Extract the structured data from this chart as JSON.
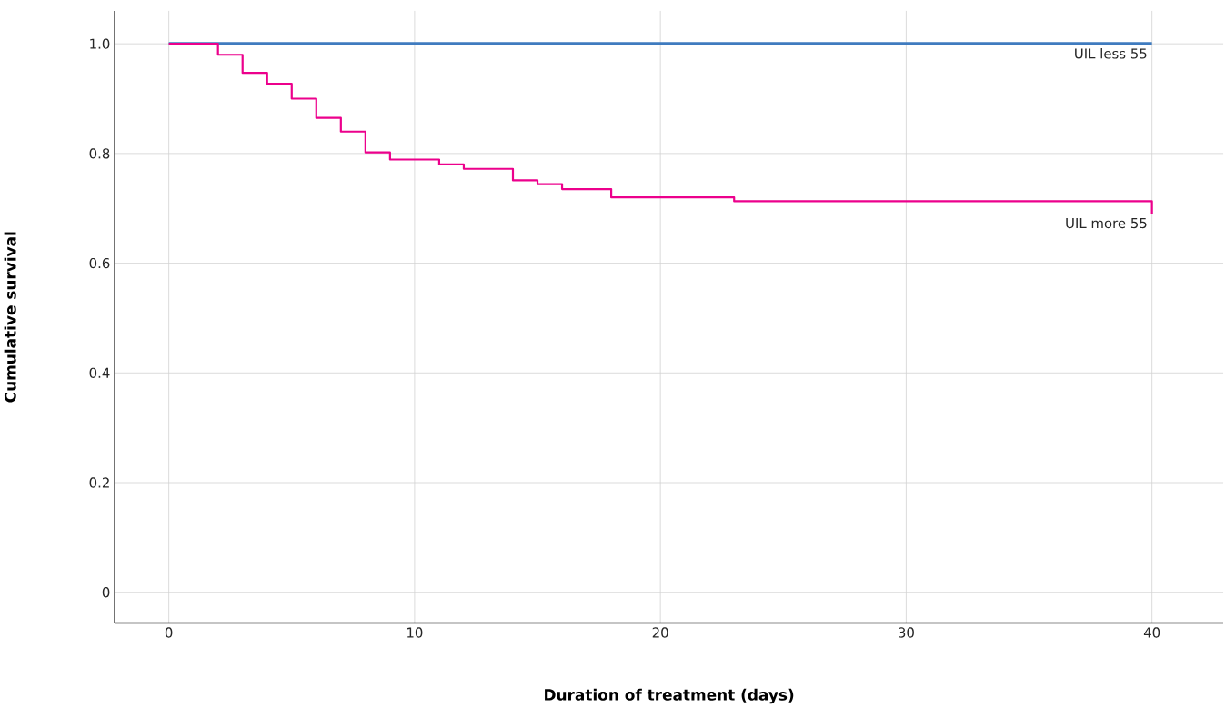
{
  "chart_data": {
    "type": "step",
    "xlabel": "Duration of treatment (days)",
    "ylabel": "Cumulative survival",
    "xlim": [
      -2.2,
      42.9
    ],
    "ylim": [
      -0.056,
      1.06
    ],
    "xticks": [
      0,
      10,
      20,
      30,
      40
    ],
    "yticks": [
      {
        "value": 0,
        "label": "0"
      },
      {
        "value": 0.2,
        "label": "0.2"
      },
      {
        "value": 0.4,
        "label": "0.4"
      },
      {
        "value": 0.6,
        "label": "0.6"
      },
      {
        "value": 0.8,
        "label": "0.8"
      },
      {
        "value": 1.0,
        "label": "1.0"
      }
    ],
    "grid": true,
    "legend": false,
    "series": [
      {
        "name": "UIL less 55",
        "color": "#3f7bbf",
        "x": [
          0,
          40
        ],
        "values": [
          1.0,
          1.0
        ]
      },
      {
        "name": "UIL more 55",
        "color": "#ec008c",
        "x": [
          0,
          2,
          3,
          4,
          5,
          6,
          7,
          8,
          9,
          11,
          12,
          14,
          15,
          16,
          18,
          23,
          40
        ],
        "values": [
          1.0,
          0.98,
          0.947,
          0.927,
          0.9,
          0.865,
          0.84,
          0.802,
          0.789,
          0.78,
          0.772,
          0.751,
          0.744,
          0.735,
          0.72,
          0.713,
          0.69
        ]
      }
    ]
  }
}
